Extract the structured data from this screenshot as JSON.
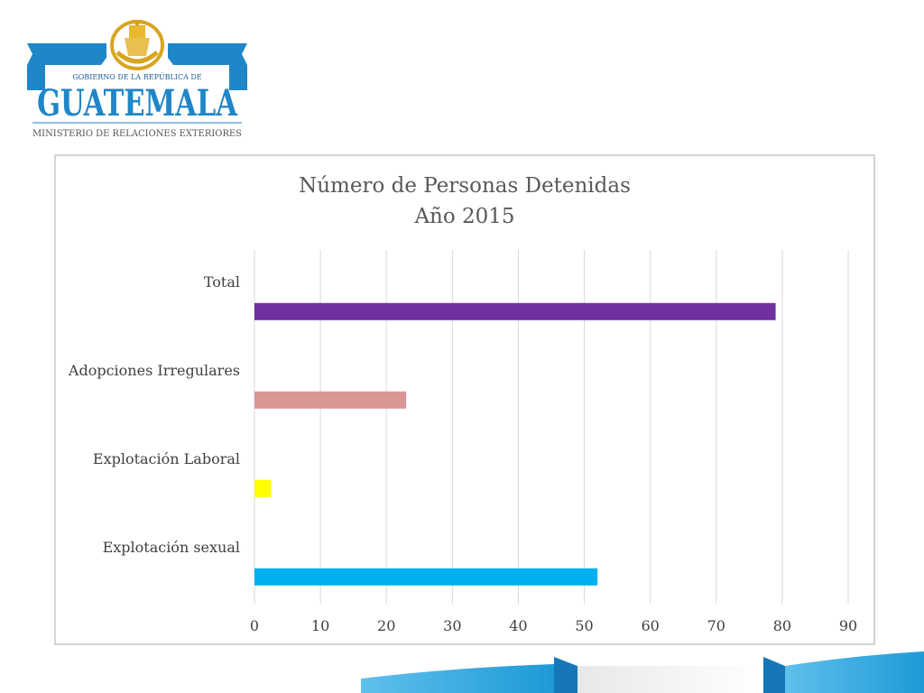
{
  "logo": {
    "line1": "GOBIERNO DE LA REPÚBLICA DE",
    "line2": "GUATEMALA",
    "line3": "MINISTERIO DE RELACIONES EXTERIORES"
  },
  "chart_data": {
    "type": "bar",
    "orientation": "horizontal",
    "title": "Número de Personas  Detenidas",
    "subtitle": "Año 2015",
    "categories": [
      "Total",
      "Adopciones Irregulares",
      "Explotación Laboral",
      "Explotación sexual"
    ],
    "values": [
      79,
      23,
      2.5,
      52
    ],
    "colors": [
      "#7030a0",
      "#d99694",
      "#ffff00",
      "#00b0f0"
    ],
    "xlim": [
      0,
      90
    ],
    "xticks": [
      0,
      10,
      20,
      30,
      40,
      50,
      60,
      70,
      80,
      90
    ],
    "grid": true,
    "legend": "none"
  },
  "colors": {
    "frame": "#d4d4d4",
    "grid": "#d9d9d9",
    "text": "#404040",
    "logo_blue": "#1e88c8",
    "logo_gold": "#d9a520"
  }
}
